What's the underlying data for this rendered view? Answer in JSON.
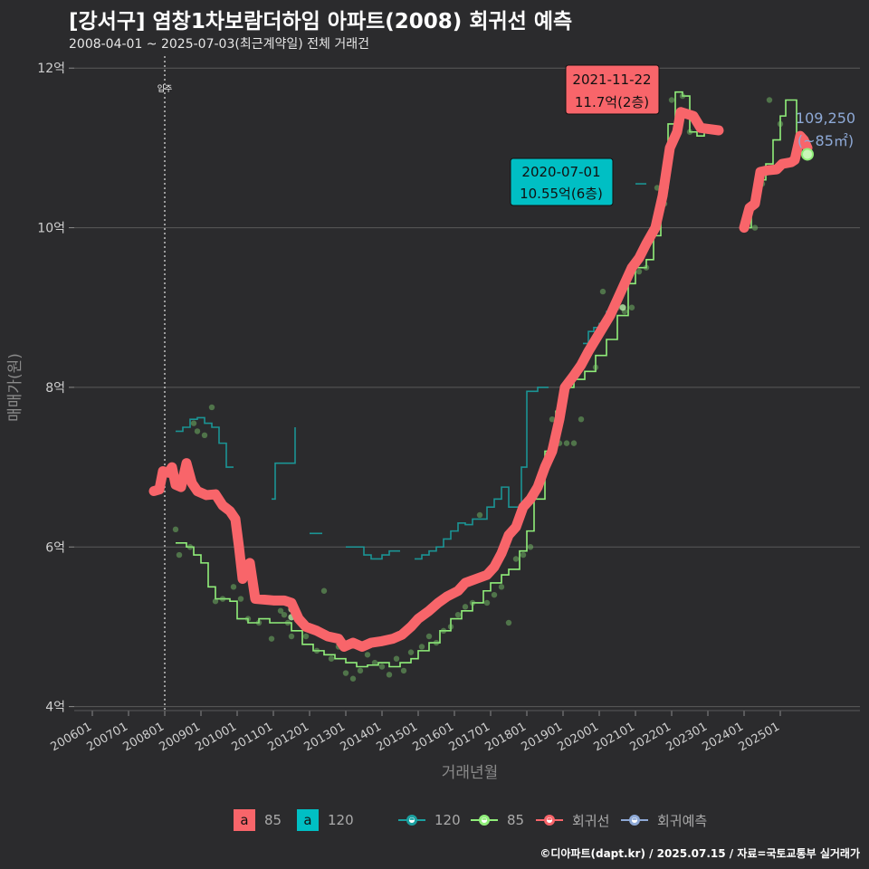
{
  "title": "[강서구] 염창1차보람더하임 아파트(2008) 회귀선 예측",
  "subtitle": "2008-04-01 ~ 2025-07-03(최근계약일) 전체 거래건",
  "caption": "©디아파트(dapt.kr) / 2025.07.15 / 자료=국토교통부 실거래가",
  "colors": {
    "background": "#2b2b2d",
    "grid": "#5a5a5a",
    "regression": "#f8656a",
    "teal": "#1aa0a0",
    "green": "#90ee7a",
    "cyan_box": "#00bfc4",
    "label_text": "#8ea9d6"
  },
  "chart_data": {
    "type": "line",
    "xlabel": "거래년월",
    "ylabel": "매매가(원)",
    "x_range": [
      2005.5,
      2027.2
    ],
    "y_range": [
      3.95,
      12.15
    ],
    "y_ticks": [
      {
        "value": 4,
        "label": "4억"
      },
      {
        "value": 6,
        "label": "6억"
      },
      {
        "value": 8,
        "label": "8억"
      },
      {
        "value": 10,
        "label": "10억"
      },
      {
        "value": 12,
        "label": "12억"
      }
    ],
    "x_ticks": [
      "200601",
      "200701",
      "200801",
      "200901",
      "201001",
      "201101",
      "201201",
      "201301",
      "201401",
      "201501",
      "201601",
      "201701",
      "201801",
      "201901",
      "202001",
      "202101",
      "202201",
      "202301",
      "202401",
      "202501"
    ],
    "x_tick_start": 2006,
    "vline": {
      "x": 2008.0,
      "label": "입주"
    },
    "series": [
      {
        "name": "회귀선",
        "role": "regression",
        "points": [
          [
            2007.7,
            6.7
          ],
          [
            2007.85,
            6.72
          ],
          [
            2007.95,
            6.95
          ],
          [
            2008.1,
            6.93
          ],
          [
            2008.2,
            7.0
          ],
          [
            2008.3,
            6.78
          ],
          [
            2008.45,
            6.75
          ],
          [
            2008.6,
            7.05
          ],
          [
            2008.75,
            6.8
          ],
          [
            2008.9,
            6.7
          ],
          [
            2009.15,
            6.65
          ],
          [
            2009.4,
            6.66
          ],
          [
            2009.6,
            6.52
          ],
          [
            2009.8,
            6.45
          ],
          [
            2009.95,
            6.35
          ],
          [
            2010.05,
            6.0
          ],
          [
            2010.15,
            5.6
          ],
          [
            2010.2,
            5.75
          ],
          [
            2010.35,
            5.8
          ],
          [
            2010.5,
            5.35
          ],
          [
            2011.0,
            5.33
          ],
          [
            2011.3,
            5.33
          ],
          [
            2011.5,
            5.3
          ],
          [
            2011.7,
            5.1
          ],
          [
            2011.9,
            5.0
          ],
          [
            2012.2,
            4.95
          ],
          [
            2012.5,
            4.88
          ],
          [
            2012.8,
            4.85
          ],
          [
            2012.95,
            4.75
          ],
          [
            2013.2,
            4.8
          ],
          [
            2013.45,
            4.75
          ],
          [
            2013.7,
            4.8
          ],
          [
            2014.0,
            4.82
          ],
          [
            2014.3,
            4.85
          ],
          [
            2014.55,
            4.9
          ],
          [
            2014.8,
            5.0
          ],
          [
            2015.0,
            5.1
          ],
          [
            2015.3,
            5.2
          ],
          [
            2015.55,
            5.3
          ],
          [
            2015.8,
            5.38
          ],
          [
            2016.1,
            5.45
          ],
          [
            2016.3,
            5.55
          ],
          [
            2016.6,
            5.6
          ],
          [
            2016.9,
            5.65
          ],
          [
            2017.1,
            5.75
          ],
          [
            2017.3,
            5.92
          ],
          [
            2017.5,
            6.15
          ],
          [
            2017.7,
            6.25
          ],
          [
            2017.9,
            6.5
          ],
          [
            2018.1,
            6.6
          ],
          [
            2018.3,
            6.75
          ],
          [
            2018.5,
            7.0
          ],
          [
            2018.7,
            7.2
          ],
          [
            2018.9,
            7.6
          ],
          [
            2019.05,
            8.0
          ],
          [
            2019.3,
            8.15
          ],
          [
            2019.5,
            8.28
          ],
          [
            2019.7,
            8.45
          ],
          [
            2019.9,
            8.6
          ],
          [
            2020.1,
            8.75
          ],
          [
            2020.3,
            8.9
          ],
          [
            2020.5,
            9.1
          ],
          [
            2020.7,
            9.3
          ],
          [
            2020.9,
            9.5
          ],
          [
            2021.1,
            9.62
          ],
          [
            2021.3,
            9.8
          ],
          [
            2021.55,
            10.0
          ],
          [
            2021.75,
            10.4
          ],
          [
            2021.95,
            11.0
          ],
          [
            2022.15,
            11.2
          ],
          [
            2022.25,
            11.45
          ],
          [
            2022.6,
            11.4
          ],
          [
            2022.8,
            11.25
          ],
          [
            2023.3,
            11.22
          ]
        ]
      },
      {
        "name": "회귀선",
        "role": "regression-2",
        "points": [
          [
            2024.0,
            10.0
          ],
          [
            2024.15,
            10.25
          ],
          [
            2024.3,
            10.3
          ],
          [
            2024.45,
            10.7
          ],
          [
            2024.65,
            10.72
          ],
          [
            2024.9,
            10.73
          ],
          [
            2025.05,
            10.8
          ],
          [
            2025.3,
            10.82
          ],
          [
            2025.4,
            10.85
          ],
          [
            2025.55,
            11.15
          ],
          [
            2025.65,
            11.1
          ],
          [
            2025.75,
            11.0
          ]
        ]
      },
      {
        "name": "85",
        "role": "step-green",
        "points": [
          [
            2008.3,
            6.05
          ],
          [
            2008.6,
            6.0
          ],
          [
            2008.8,
            5.9
          ],
          [
            2009.0,
            5.8
          ],
          [
            2009.2,
            5.5
          ],
          [
            2009.4,
            5.35
          ],
          [
            2009.6,
            5.35
          ],
          [
            2009.8,
            5.32
          ],
          [
            2010.0,
            5.1
          ],
          [
            2010.3,
            5.05
          ],
          [
            2010.6,
            5.1
          ],
          [
            2010.9,
            5.05
          ],
          [
            2011.2,
            5.05
          ],
          [
            2011.5,
            4.95
          ],
          [
            2011.8,
            4.78
          ],
          [
            2012.1,
            4.7
          ],
          [
            2012.4,
            4.65
          ],
          [
            2012.7,
            4.6
          ],
          [
            2013.0,
            4.55
          ],
          [
            2013.3,
            4.5
          ],
          [
            2013.6,
            4.52
          ],
          [
            2013.9,
            4.55
          ],
          [
            2014.2,
            4.5
          ],
          [
            2014.5,
            4.55
          ],
          [
            2014.8,
            4.6
          ],
          [
            2015.0,
            4.7
          ],
          [
            2015.3,
            4.8
          ],
          [
            2015.6,
            4.95
          ],
          [
            2015.9,
            5.1
          ],
          [
            2016.2,
            5.2
          ],
          [
            2016.5,
            5.3
          ],
          [
            2016.8,
            5.45
          ],
          [
            2017.0,
            5.55
          ],
          [
            2017.3,
            5.65
          ],
          [
            2017.5,
            5.72
          ],
          [
            2017.8,
            5.95
          ],
          [
            2018.0,
            6.2
          ],
          [
            2018.2,
            6.6
          ],
          [
            2018.5,
            7.2
          ],
          [
            2018.8,
            7.7
          ],
          [
            2019.0,
            8.0
          ],
          [
            2019.3,
            8.1
          ],
          [
            2019.6,
            8.2
          ],
          [
            2019.9,
            8.4
          ],
          [
            2020.2,
            8.6
          ],
          [
            2020.5,
            8.9
          ],
          [
            2020.8,
            9.3
          ],
          [
            2021.0,
            9.5
          ],
          [
            2021.3,
            9.6
          ],
          [
            2021.5,
            9.9
          ],
          [
            2021.7,
            10.5
          ],
          [
            2021.9,
            11.3
          ],
          [
            2022.1,
            11.7
          ],
          [
            2022.3,
            11.65
          ],
          [
            2022.5,
            11.2
          ],
          [
            2022.7,
            11.15
          ],
          [
            2022.9,
            11.2
          ]
        ]
      },
      {
        "name": "85",
        "role": "step-green-2",
        "points": [
          [
            2024.0,
            10.0
          ],
          [
            2024.2,
            10.3
          ],
          [
            2024.4,
            10.6
          ],
          [
            2024.6,
            10.8
          ],
          [
            2024.8,
            11.1
          ],
          [
            2025.0,
            11.4
          ],
          [
            2025.15,
            11.6
          ],
          [
            2025.35,
            11.6
          ],
          [
            2025.45,
            10.8
          ]
        ]
      },
      {
        "name": "120",
        "role": "step-teal",
        "points": [
          [
            2008.3,
            7.45
          ],
          [
            2008.5,
            7.5
          ],
          [
            2008.7,
            7.6
          ],
          [
            2008.9,
            7.62
          ],
          [
            2009.1,
            7.55
          ],
          [
            2009.3,
            7.5
          ],
          [
            2009.5,
            7.3
          ],
          [
            2009.7,
            7.0
          ],
          [
            2009.9,
            7.0
          ]
        ]
      },
      {
        "name": "120",
        "role": "step-teal-2",
        "points": [
          [
            2010.95,
            6.6
          ],
          [
            2011.05,
            7.05
          ],
          [
            2011.3,
            7.05
          ],
          [
            2011.5,
            7.05
          ],
          [
            2011.6,
            7.5
          ]
        ]
      },
      {
        "name": "120",
        "role": "step-teal-3",
        "points": [
          [
            2012.0,
            6.17
          ],
          [
            2012.35,
            6.17
          ]
        ]
      },
      {
        "name": "120",
        "role": "step-teal-4",
        "points": [
          [
            2013.0,
            6.0
          ],
          [
            2013.3,
            6.0
          ],
          [
            2013.5,
            5.9
          ],
          [
            2013.7,
            5.85
          ],
          [
            2014.0,
            5.9
          ],
          [
            2014.2,
            5.95
          ],
          [
            2014.5,
            5.95
          ]
        ]
      },
      {
        "name": "120",
        "role": "step-teal-5",
        "points": [
          [
            2014.9,
            5.85
          ],
          [
            2015.1,
            5.9
          ],
          [
            2015.3,
            5.95
          ],
          [
            2015.5,
            6.0
          ],
          [
            2015.7,
            6.1
          ],
          [
            2015.9,
            6.2
          ],
          [
            2016.1,
            6.3
          ],
          [
            2016.3,
            6.28
          ],
          [
            2016.5,
            6.35
          ],
          [
            2016.7,
            6.35
          ],
          [
            2016.9,
            6.5
          ],
          [
            2017.1,
            6.6
          ],
          [
            2017.3,
            6.75
          ],
          [
            2017.5,
            6.5
          ],
          [
            2017.7,
            6.5
          ],
          [
            2017.85,
            7.0
          ],
          [
            2018.0,
            7.95
          ],
          [
            2018.3,
            8.0
          ],
          [
            2018.6,
            8.0
          ]
        ]
      },
      {
        "name": "120",
        "role": "step-teal-6",
        "points": [
          [
            2019.55,
            8.55
          ],
          [
            2019.7,
            8.7
          ],
          [
            2019.85,
            8.75
          ],
          [
            2020.0,
            8.8
          ],
          [
            2020.2,
            8.95
          ],
          [
            2020.4,
            8.95
          ]
        ]
      },
      {
        "name": "120",
        "role": "step-teal-7",
        "points": [
          [
            2021.0,
            10.55
          ],
          [
            2021.3,
            10.55
          ]
        ]
      }
    ],
    "scatter": [
      [
        2008.3,
        6.22
      ],
      [
        2008.4,
        5.9
      ],
      [
        2008.7,
        6.0
      ],
      [
        2008.9,
        7.45
      ],
      [
        2008.8,
        7.55
      ],
      [
        2009.1,
        7.4
      ],
      [
        2009.3,
        7.75
      ],
      [
        2009.4,
        5.32
      ],
      [
        2009.6,
        5.35
      ],
      [
        2009.9,
        5.5
      ],
      [
        2010.1,
        5.35
      ],
      [
        2010.3,
        5.1
      ],
      [
        2010.6,
        5.05
      ],
      [
        2010.95,
        4.85
      ],
      [
        2011.2,
        5.2
      ],
      [
        2011.4,
        5.05
      ],
      [
        2011.5,
        4.88
      ],
      [
        2011.3,
        5.15
      ],
      [
        2011.9,
        4.88
      ],
      [
        2012.2,
        4.7
      ],
      [
        2012.4,
        5.45
      ],
      [
        2012.6,
        4.6
      ],
      [
        2012.8,
        4.75
      ],
      [
        2013.0,
        4.42
      ],
      [
        2013.2,
        4.35
      ],
      [
        2013.4,
        4.45
      ],
      [
        2013.6,
        4.65
      ],
      [
        2013.8,
        4.55
      ],
      [
        2014.0,
        4.5
      ],
      [
        2014.2,
        4.4
      ],
      [
        2014.4,
        4.6
      ],
      [
        2014.6,
        4.45
      ],
      [
        2014.8,
        4.68
      ],
      [
        2015.1,
        4.75
      ],
      [
        2015.3,
        4.88
      ],
      [
        2015.5,
        4.8
      ],
      [
        2015.7,
        4.95
      ],
      [
        2015.9,
        5.0
      ],
      [
        2016.1,
        5.15
      ],
      [
        2016.3,
        5.25
      ],
      [
        2016.5,
        5.3
      ],
      [
        2016.7,
        6.4
      ],
      [
        2016.9,
        5.3
      ],
      [
        2017.1,
        5.4
      ],
      [
        2017.3,
        5.5
      ],
      [
        2017.5,
        5.05
      ],
      [
        2017.7,
        5.85
      ],
      [
        2017.9,
        5.9
      ],
      [
        2018.1,
        6.0
      ],
      [
        2018.3,
        6.8
      ],
      [
        2018.5,
        7.05
      ],
      [
        2018.7,
        7.6
      ],
      [
        2018.9,
        7.3
      ],
      [
        2019.1,
        7.3
      ],
      [
        2019.3,
        7.3
      ],
      [
        2019.5,
        7.6
      ],
      [
        2019.7,
        8.4
      ],
      [
        2019.9,
        8.25
      ],
      [
        2020.1,
        9.2
      ],
      [
        2020.3,
        8.95
      ],
      [
        2020.5,
        9.0
      ],
      [
        2020.7,
        8.95
      ],
      [
        2020.9,
        9.0
      ],
      [
        2021.1,
        9.45
      ],
      [
        2021.3,
        9.5
      ],
      [
        2021.6,
        10.5
      ],
      [
        2021.8,
        10.3
      ],
      [
        2022.0,
        11.6
      ],
      [
        2022.3,
        11.65
      ],
      [
        2022.5,
        11.2
      ],
      [
        2024.3,
        10.0
      ],
      [
        2024.5,
        10.55
      ],
      [
        2024.7,
        11.6
      ],
      [
        2025.0,
        11.3
      ],
      [
        2025.2,
        10.8
      ]
    ],
    "scatter_highlight": [
      [
        2011.5,
        5.22
      ],
      [
        2011.5,
        5.12
      ],
      [
        2020.65,
        9.0
      ]
    ],
    "end_point": {
      "x": 2025.75,
      "y": 10.92
    },
    "annotations": [
      {
        "text_date": "2021-11-22",
        "text_value": "11.7억(2층)",
        "kind": "red"
      },
      {
        "text_date": "2020-07-01",
        "text_value": "10.55억(6층)",
        "kind": "cyan"
      },
      {
        "text_line1": "109,250",
        "text_line2": "(~85㎡)",
        "kind": "predict"
      }
    ]
  },
  "legend": {
    "fill_85": "85",
    "fill_120": "120",
    "fill_letter": "a",
    "line_120": "120",
    "line_85": "85",
    "line_reg": "회귀선",
    "line_pred": "회귀예측"
  }
}
